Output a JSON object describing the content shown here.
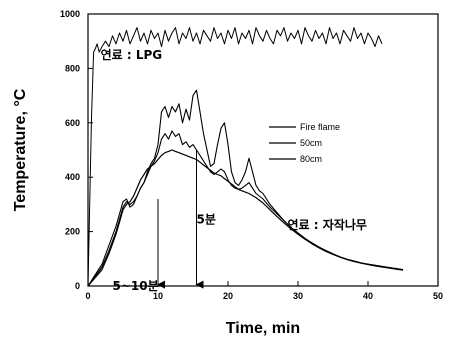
{
  "chart_data": {
    "type": "line",
    "title": "",
    "xlabel": "Time, min",
    "ylabel": "Temperature, °C",
    "xlim": [
      0,
      50
    ],
    "ylim": [
      0,
      1000
    ],
    "xticks": [
      0,
      10,
      20,
      30,
      40,
      50
    ],
    "yticks": [
      0,
      200,
      400,
      600,
      800,
      1000
    ],
    "grid": false,
    "legend_position": "right",
    "series": [
      {
        "name": "",
        "label_text": "연료 : LPG",
        "x": [
          0,
          0.5,
          0.8,
          1,
          1.3,
          1.6,
          2,
          2.5,
          3,
          3.5,
          4,
          4.5,
          5,
          5.5,
          6,
          6.5,
          7,
          7.5,
          8,
          8.5,
          9,
          9.5,
          10,
          10.5,
          11,
          11.5,
          12,
          12.5,
          13,
          13.5,
          14,
          14.5,
          15,
          15.5,
          16,
          16.5,
          17,
          17.5,
          18,
          18.5,
          19,
          19.5,
          20,
          20.5,
          21,
          21.5,
          22,
          22.5,
          23,
          23.5,
          24,
          24.5,
          25,
          25.5,
          26,
          26.5,
          27,
          27.5,
          28,
          28.5,
          29,
          29.5,
          30,
          30.5,
          31,
          31.5,
          32,
          32.5,
          33,
          33.5,
          34,
          34.5,
          35,
          35.5,
          36,
          36.5,
          37,
          37.5,
          38,
          38.5,
          39,
          39.5,
          40,
          40.5,
          41,
          41.5,
          42
        ],
        "y": [
          0,
          620,
          860,
          870,
          890,
          860,
          880,
          900,
          880,
          920,
          890,
          930,
          900,
          940,
          890,
          920,
          950,
          900,
          930,
          890,
          940,
          910,
          930,
          880,
          940,
          900,
          930,
          950,
          890,
          930,
          910,
          950,
          900,
          930,
          890,
          940,
          920,
          900,
          950,
          910,
          930,
          890,
          940,
          910,
          950,
          890,
          930,
          910,
          940,
          890,
          950,
          920,
          900,
          940,
          910,
          890,
          940,
          920,
          950,
          900,
          930,
          910,
          940,
          890,
          950,
          920,
          900,
          940,
          910,
          930,
          890,
          950,
          910,
          930,
          890,
          940,
          920,
          900,
          950,
          910,
          930,
          890,
          930,
          910,
          880,
          920,
          890
        ]
      },
      {
        "name": "Fire flame",
        "x": [
          0,
          1,
          2,
          3,
          4,
          5,
          5.5,
          6,
          6.5,
          7,
          7.5,
          8,
          8.5,
          9,
          9.5,
          10,
          10.5,
          11,
          11.5,
          12,
          12.5,
          13,
          13.5,
          14,
          14.5,
          15,
          15.5,
          16,
          16.5,
          17,
          17.5,
          18,
          18.5,
          19,
          19.5,
          20,
          20.5,
          21,
          21.5,
          22,
          22.5,
          23,
          23.5,
          24,
          24.5,
          25,
          26,
          27,
          28,
          29,
          30,
          31,
          32,
          33,
          34,
          35,
          36,
          37,
          38,
          39,
          40,
          41,
          42,
          43,
          44,
          45
        ],
        "y": [
          0,
          40,
          80,
          150,
          220,
          310,
          320,
          290,
          300,
          330,
          360,
          380,
          420,
          450,
          470,
          520,
          640,
          660,
          620,
          660,
          640,
          670,
          600,
          650,
          610,
          700,
          720,
          640,
          560,
          500,
          440,
          450,
          520,
          580,
          600,
          520,
          420,
          380,
          370,
          390,
          420,
          470,
          420,
          370,
          350,
          340,
          300,
          270,
          240,
          215,
          195,
          175,
          158,
          143,
          130,
          118,
          107,
          98,
          92,
          85,
          80,
          76,
          72,
          68,
          64,
          60
        ]
      },
      {
        "name": "50cm",
        "x": [
          0,
          1,
          2,
          3,
          4,
          5,
          5.5,
          6,
          6.5,
          7,
          7.5,
          8,
          8.5,
          9,
          9.5,
          10,
          10.5,
          11,
          11.5,
          12,
          12.5,
          13,
          13.5,
          14,
          14.5,
          15,
          15.5,
          16,
          16.5,
          17,
          17.5,
          18,
          18.5,
          19,
          19.5,
          20,
          20.5,
          21,
          21.5,
          22,
          22.5,
          23,
          24,
          25,
          26,
          27,
          28,
          29,
          30,
          31,
          32,
          33,
          34,
          35,
          36,
          37,
          38,
          39,
          40,
          41,
          42,
          43,
          44,
          45
        ],
        "y": [
          0,
          35,
          70,
          130,
          200,
          290,
          310,
          300,
          310,
          330,
          360,
          380,
          410,
          440,
          460,
          490,
          540,
          560,
          540,
          570,
          550,
          560,
          520,
          530,
          510,
          520,
          500,
          480,
          460,
          440,
          420,
          410,
          420,
          430,
          420,
          390,
          370,
          360,
          355,
          360,
          370,
          380,
          340,
          320,
          290,
          265,
          240,
          215,
          195,
          175,
          158,
          143,
          130,
          118,
          107,
          98,
          92,
          85,
          80,
          76,
          72,
          68,
          64,
          60
        ]
      },
      {
        "name": "80cm",
        "x": [
          0,
          1,
          2,
          3,
          4,
          5,
          5.5,
          6,
          6.5,
          7,
          7.5,
          8,
          8.5,
          9,
          9.5,
          10,
          10.5,
          11,
          11.5,
          12,
          12.5,
          13,
          13.5,
          14,
          14.5,
          15,
          15.5,
          16,
          16.5,
          17,
          17.5,
          18,
          18.5,
          19,
          19.5,
          20,
          20.5,
          21,
          21.5,
          22,
          22.5,
          23,
          24,
          25,
          26,
          27,
          28,
          29,
          30,
          31,
          32,
          33,
          34,
          35,
          36,
          37,
          38,
          39,
          40,
          41,
          42,
          43,
          44,
          45
        ],
        "y": [
          0,
          30,
          60,
          120,
          190,
          280,
          300,
          310,
          330,
          360,
          390,
          410,
          430,
          440,
          450,
          465,
          480,
          490,
          495,
          500,
          495,
          490,
          485,
          480,
          475,
          470,
          465,
          455,
          445,
          435,
          425,
          415,
          410,
          405,
          395,
          385,
          375,
          365,
          355,
          350,
          345,
          340,
          325,
          305,
          280,
          255,
          232,
          210,
          190,
          172,
          155,
          140,
          127,
          116,
          106,
          97,
          90,
          84,
          79,
          74,
          70,
          66,
          62,
          58
        ]
      }
    ],
    "annotations": [
      {
        "text": "5분",
        "x": 15.5,
        "y": 230
      },
      {
        "text": "연료 : 자작나무",
        "x": 28.5,
        "y": 210
      },
      {
        "text": "5~10분",
        "x": 3.5,
        "y": -15
      }
    ],
    "arrows": [
      {
        "x": 10,
        "y_start": 320,
        "y_end": 5
      },
      {
        "x": 15.5,
        "y_start": 500,
        "y_end": 5
      }
    ]
  }
}
